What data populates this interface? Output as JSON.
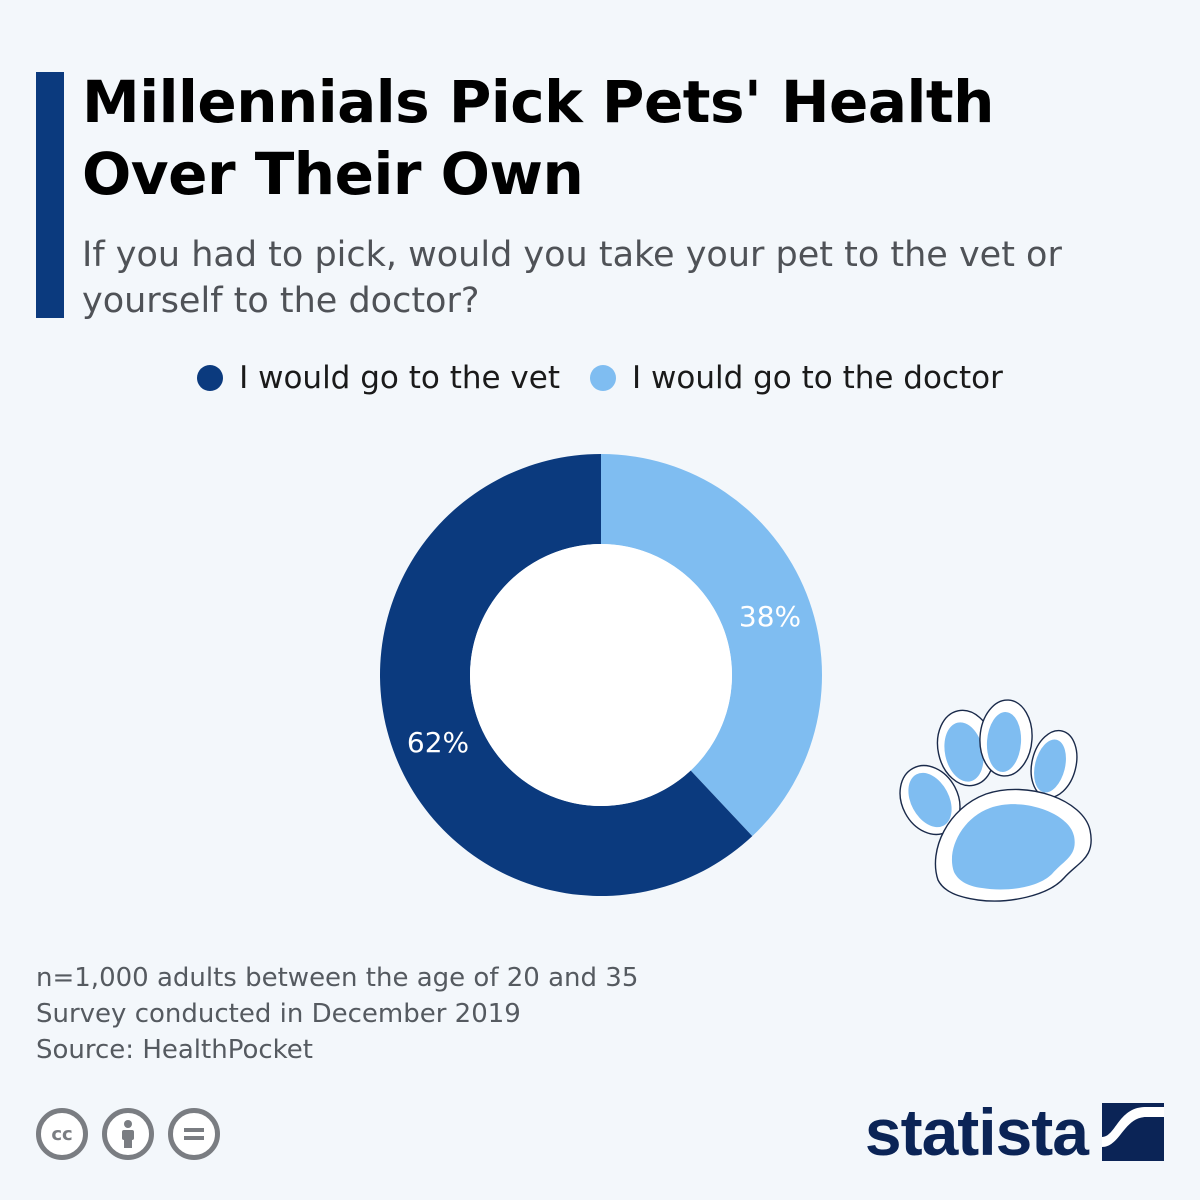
{
  "header": {
    "title": "Millennials Pick Pets' Health Over Their Own",
    "subtitle": "If you had to pick, would you take your pet to the vet or yourself to the doctor?"
  },
  "colors": {
    "accent": "#0b3a7e",
    "vet": "#0b3a7e",
    "doctor": "#7fbdf1",
    "background": "#f3f7fb"
  },
  "chart_data": {
    "type": "pie",
    "donut": true,
    "series": [
      {
        "name": "I would go to the vet",
        "value": 62,
        "label": "62%",
        "color": "#0b3a7e"
      },
      {
        "name": "I would go to the doctor",
        "value": 38,
        "label": "38%",
        "color": "#7fbdf1"
      }
    ],
    "legend_position": "top-center"
  },
  "notes": [
    "n=1,000 adults between the age of 20 and 35",
    "Survey conducted in December 2019",
    "Source: HealthPocket"
  ],
  "footer": {
    "brand": "statista",
    "license_icons": [
      "cc-icon",
      "attribution-icon",
      "no-derivatives-icon"
    ],
    "cc_text": "cc"
  },
  "decoration": {
    "icon": "paw-print-icon"
  }
}
